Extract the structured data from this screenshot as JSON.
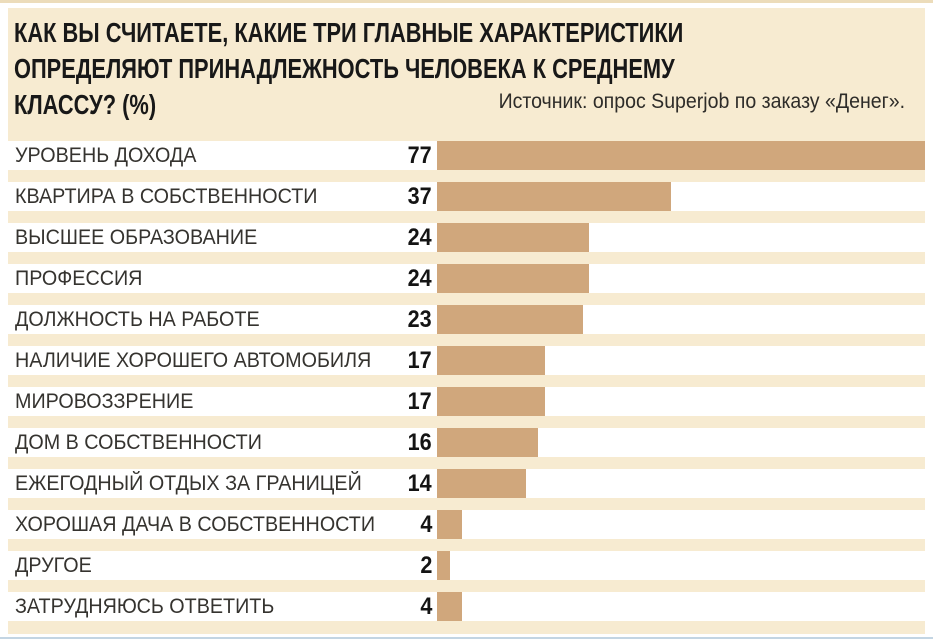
{
  "header": {
    "title_lines": [
      "КАК ВЫ СЧИТАЕТЕ, КАКИЕ ТРИ ГЛАВНЫЕ ХАРАКТЕРИСТИКИ",
      "ОПРЕДЕЛЯЮТ ПРИНАДЛЕЖНОСТЬ ЧЕЛОВЕКА К СРЕДНЕМУ",
      "КЛАССУ? (%)"
    ],
    "source": "Источник: опрос Superjob по заказу «Денег»."
  },
  "colors": {
    "panel_bg": "#f7ebd1",
    "row_bg": "#ffffff",
    "bar": "#d0a77c",
    "title_text": "#181818",
    "label_text": "#35332f",
    "value_text": "#141414",
    "top_rule": "#ecdcba",
    "bottom_rule": "#c3d5e3"
  },
  "chart_data": {
    "type": "bar",
    "orientation": "horizontal",
    "title": "КАК ВЫ СЧИТАЕТЕ, КАКИЕ ТРИ ГЛАВНЫЕ ХАРАКТЕРИСТИКИ ОПРЕДЕЛЯЮТ ПРИНАДЛЕЖНОСТЬ ЧЕЛОВЕКА К СРЕДНЕМУ КЛАССУ? (%)",
    "source": "Источник: опрос Superjob по заказу «Денег».",
    "unit": "%",
    "xlim": [
      0,
      77
    ],
    "value_labels_shown": true,
    "grid": false,
    "legend": false,
    "categories": [
      "УРОВЕНЬ ДОХОДА",
      "КВАРТИРА В СОБСТВЕННОСТИ",
      "ВЫСШЕЕ ОБРАЗОВАНИЕ",
      "ПРОФЕССИЯ",
      "ДОЛЖНОСТЬ НА РАБОТЕ",
      "НАЛИЧИЕ ХОРОШЕГО АВТОМОБИЛЯ",
      "МИРОВОЗЗРЕНИЕ",
      "ДОМ В СОБСТВЕННОСТИ",
      "ЕЖЕГОДНЫЙ ОТДЫХ ЗА ГРАНИЦЕЙ",
      "ХОРОШАЯ ДАЧА В СОБСТВЕННОСТИ",
      "ДРУГОЕ",
      "ЗАТРУДНЯЮСЬ ОТВЕТИТЬ"
    ],
    "values": [
      77,
      37,
      24,
      24,
      23,
      17,
      17,
      16,
      14,
      4,
      2,
      4
    ]
  }
}
